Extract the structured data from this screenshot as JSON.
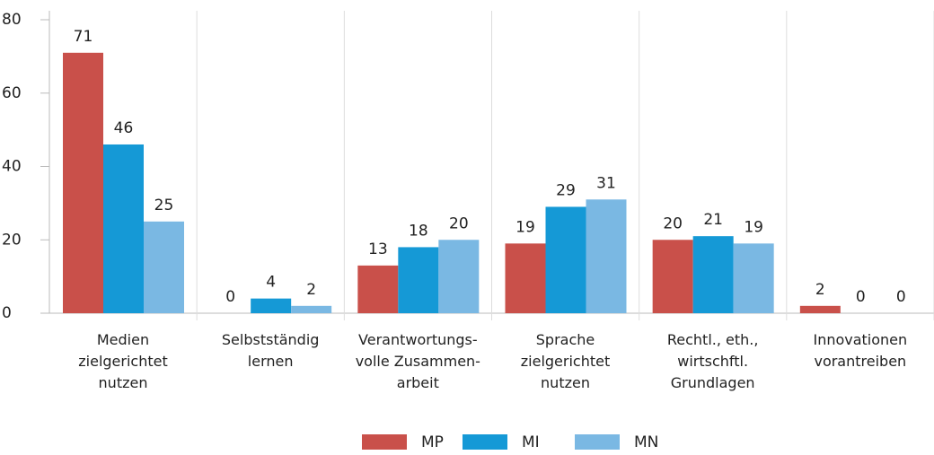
{
  "chart_data": {
    "type": "bar",
    "categories": [
      "Medien\nzielgerichtet\nnutzen",
      "Selbstständig\nlernen",
      "Verantwortungs-\nvolle Zusammen-\narbeit",
      "Sprache\nzielgerichtet\nnutzen",
      "Rechtl., eth.,\nwirtschftl.\nGrundlagen",
      "Innovationen\nvorantreiben"
    ],
    "series": [
      {
        "name": "MP",
        "color": "#c9504a",
        "values": [
          71,
          0,
          13,
          19,
          20,
          2
        ]
      },
      {
        "name": "MI",
        "color": "#1599d6",
        "values": [
          46,
          4,
          18,
          29,
          21,
          0
        ]
      },
      {
        "name": "MN",
        "color": "#7ab8e3",
        "values": [
          25,
          2,
          20,
          31,
          19,
          0
        ]
      }
    ],
    "ylim": [
      0,
      80
    ],
    "yticks": [
      0,
      20,
      40,
      60,
      80
    ],
    "legend": "bottom"
  }
}
